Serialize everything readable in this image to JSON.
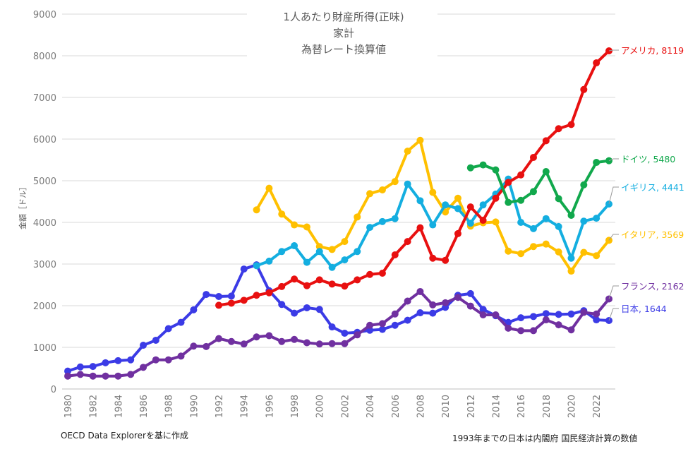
{
  "chart_data": {
    "type": "line",
    "title": [
      "1人あたり財産所得(正味)",
      "家計",
      "為替レート換算値"
    ],
    "xlabel": "",
    "ylabel": "金額［ドル］",
    "xlim": [
      1980,
      2023
    ],
    "ylim": [
      0,
      9000
    ],
    "yticks": [
      0,
      1000,
      2000,
      3000,
      4000,
      5000,
      6000,
      7000,
      8000,
      9000
    ],
    "xticks": [
      1980,
      1982,
      1984,
      1986,
      1988,
      1990,
      1992,
      1994,
      1996,
      1998,
      2000,
      2002,
      2004,
      2006,
      2008,
      2010,
      2012,
      2014,
      2016,
      2018,
      2020,
      2022
    ],
    "grid": "horizontal",
    "series": [
      {
        "name": "日本",
        "label": "日本, 1644",
        "color": "#3b3be6",
        "start": 1980,
        "values": [
          430,
          530,
          540,
          630,
          680,
          700,
          1050,
          1170,
          1450,
          1600,
          1900,
          2270,
          2220,
          2230,
          2880,
          2980,
          2360,
          2030,
          1820,
          1950,
          1910,
          1490,
          1340,
          1360,
          1410,
          1430,
          1530,
          1650,
          1830,
          1820,
          1960,
          2250,
          2290,
          1910,
          1760,
          1600,
          1710,
          1740,
          1810,
          1790,
          1800,
          1880,
          1660,
          1644
        ]
      },
      {
        "name": "フランス",
        "label": "フランス, 2162",
        "color": "#7030a0",
        "start": 1980,
        "values": [
          310,
          350,
          310,
          310,
          310,
          350,
          520,
          700,
          700,
          790,
          1030,
          1020,
          1210,
          1140,
          1080,
          1250,
          1280,
          1140,
          1190,
          1110,
          1080,
          1090,
          1090,
          1300,
          1530,
          1570,
          1800,
          2110,
          2340,
          2020,
          2070,
          2200,
          1990,
          1780,
          1780,
          1460,
          1400,
          1400,
          1660,
          1540,
          1420,
          1840,
          1800,
          2162
        ]
      },
      {
        "name": "イタリア",
        "label": "イタリア, 3569",
        "color": "#ffc000",
        "start": 1995,
        "values": [
          4300,
          4820,
          4200,
          3940,
          3890,
          3420,
          3350,
          3540,
          4130,
          4690,
          4780,
          4980,
          5710,
          5970,
          4720,
          4250,
          4580,
          3910,
          3990,
          4010,
          3310,
          3250,
          3420,
          3480,
          3290,
          2830,
          3280,
          3200,
          3569
        ]
      },
      {
        "name": "イギリス",
        "label": "イギリス, 4441",
        "color": "#14aee0",
        "start": 1995,
        "values": [
          2960,
          3070,
          3300,
          3440,
          3040,
          3300,
          2920,
          3100,
          3300,
          3880,
          4020,
          4090,
          4920,
          4520,
          3940,
          4420,
          4330,
          3980,
          4420,
          4680,
          5040,
          4000,
          3850,
          4090,
          3900,
          3140,
          4030,
          4100,
          4441
        ]
      },
      {
        "name": "アメリカ",
        "label": "アメリカ, 8119",
        "color": "#e81010",
        "start": 1992,
        "values": [
          2010,
          2060,
          2130,
          2250,
          2310,
          2460,
          2640,
          2480,
          2620,
          2520,
          2470,
          2620,
          2750,
          2780,
          3220,
          3540,
          3870,
          3140,
          3090,
          3730,
          4370,
          4050,
          4580,
          4960,
          5140,
          5560,
          5960,
          6250,
          6350,
          7190,
          7830,
          8119
        ]
      },
      {
        "name": "ドイツ",
        "label": "ドイツ, 5480",
        "color": "#11a84c",
        "start": 2012,
        "values": [
          5310,
          5380,
          5260,
          4480,
          4530,
          4740,
          5220,
          4570,
          4170,
          4900,
          5440,
          5480
        ]
      }
    ]
  },
  "notes": {
    "source": "OECD Data Explorerを基に作成",
    "footnote": "1993年までの日本は内閣府 国民経済計算の数値"
  }
}
